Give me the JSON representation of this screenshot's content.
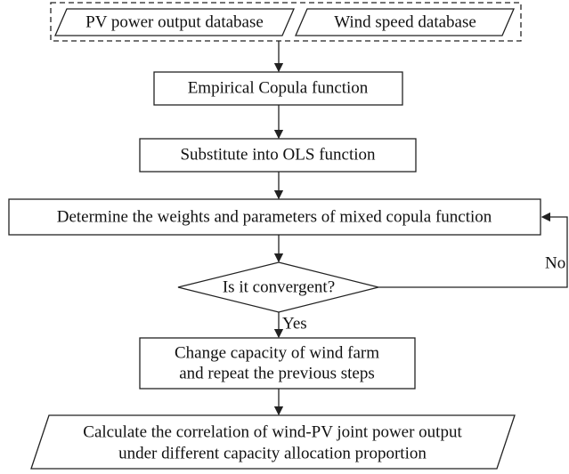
{
  "nodes": [
    {
      "label": "PV power output database"
    },
    {
      "label": "Wind speed database"
    },
    {
      "label": "Empirical Copula function"
    },
    {
      "label": "Substitute  into OLS function"
    },
    {
      "label": "Determine the weights and parameters of mixed copula function"
    },
    {
      "label": "Is it convergent?"
    },
    {
      "label": "Change capacity of wind farm"
    },
    {
      "label": "and repeat the previous steps"
    },
    {
      "label": "Calculate the correlation of wind-PV joint power output"
    },
    {
      "label": "under different capacity allocation proportion"
    }
  ],
  "edges": [
    {
      "label": "No"
    },
    {
      "label": "Yes"
    }
  ]
}
